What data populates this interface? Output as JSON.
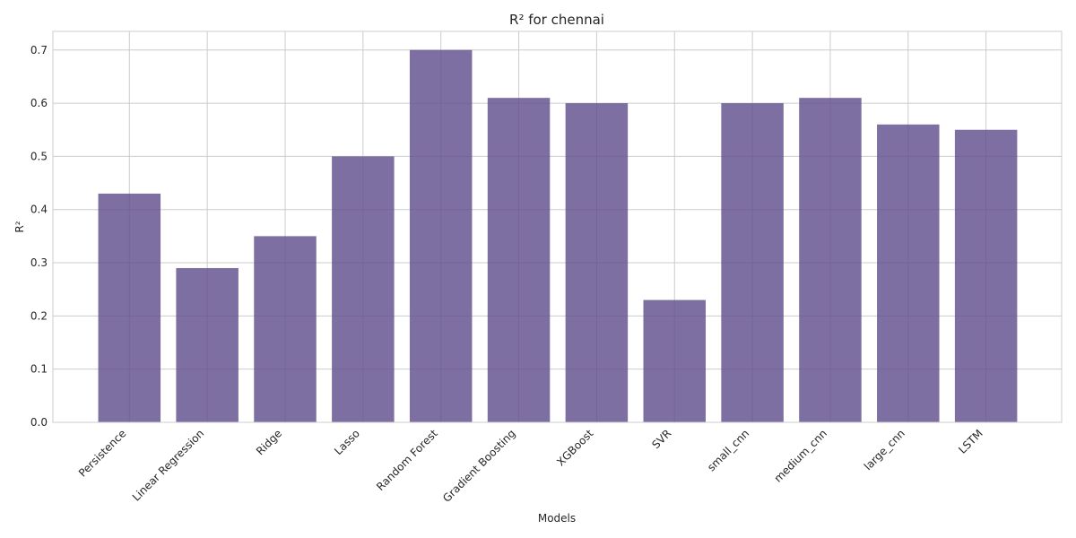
{
  "chart_data": {
    "type": "bar",
    "title": "R² for chennai",
    "xlabel": "Models",
    "ylabel": "R²",
    "categories": [
      "Persistence",
      "Linear Regression",
      "Ridge",
      "Lasso",
      "Random Forest",
      "Gradient Boosting",
      "XGBoost",
      "SVR",
      "small_cnn",
      "medium_cnn",
      "large_cnn",
      "LSTM"
    ],
    "values": [
      0.43,
      0.29,
      0.35,
      0.5,
      0.7,
      0.61,
      0.6,
      0.23,
      0.6,
      0.61,
      0.56,
      0.55
    ],
    "ylim": [
      0,
      0.735
    ],
    "yticks": [
      0.0,
      0.1,
      0.2,
      0.3,
      0.4,
      0.5,
      0.6,
      0.7
    ],
    "grid": true,
    "bar_color": "#5e4b8b"
  }
}
